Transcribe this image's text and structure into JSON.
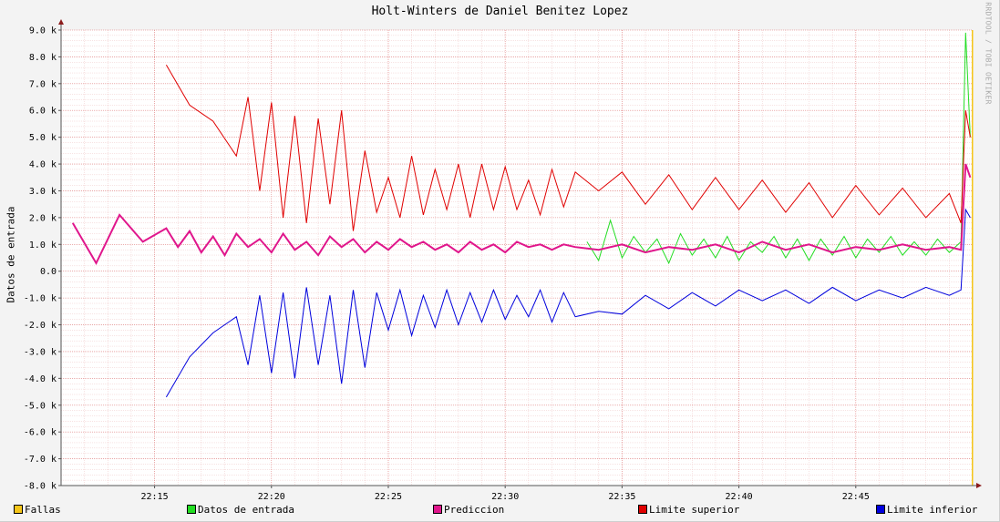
{
  "chart_data": {
    "type": "line",
    "title": "Holt-Winters de Daniel Benitez Lopez",
    "ylabel": "Datos de entrada",
    "watermark": "RRDTOOL / TOBI OETIKER",
    "ylim": [
      -8000,
      9000
    ],
    "yticks": [
      {
        "value": 9000,
        "label": "9.0 k"
      },
      {
        "value": 8000,
        "label": "8.0 k"
      },
      {
        "value": 7000,
        "label": "7.0 k"
      },
      {
        "value": 6000,
        "label": "6.0 k"
      },
      {
        "value": 5000,
        "label": "5.0 k"
      },
      {
        "value": 4000,
        "label": "4.0 k"
      },
      {
        "value": 3000,
        "label": "3.0 k"
      },
      {
        "value": 2000,
        "label": "2.0 k"
      },
      {
        "value": 1000,
        "label": "1.0 k"
      },
      {
        "value": 0,
        "label": "0.0"
      },
      {
        "value": -1000,
        "label": "-1.0 k"
      },
      {
        "value": -2000,
        "label": "-2.0 k"
      },
      {
        "value": -3000,
        "label": "-3.0 k"
      },
      {
        "value": -4000,
        "label": "-4.0 k"
      },
      {
        "value": -5000,
        "label": "-5.0 k"
      },
      {
        "value": -6000,
        "label": "-6.0 k"
      },
      {
        "value": -7000,
        "label": "-7.0 k"
      },
      {
        "value": -8000,
        "label": "-8.0 k"
      }
    ],
    "xlim": [
      "22:11",
      "22:50"
    ],
    "xticks": [
      "22:15",
      "22:20",
      "22:25",
      "22:30",
      "22:35",
      "22:40",
      "22:45"
    ],
    "grid": true,
    "legend": "bottom",
    "series": [
      {
        "name": "Fallas",
        "color": "#f5c518",
        "x": [
          "22:50"
        ],
        "values": [
          1
        ]
      },
      {
        "name": "Datos de entrada",
        "color": "#22dd22",
        "x": [
          "22:33.5",
          "22:34",
          "22:34.5",
          "22:35",
          "22:35.5",
          "22:36",
          "22:36.5",
          "22:37",
          "22:37.5",
          "22:38",
          "22:38.5",
          "22:39",
          "22:39.5",
          "22:40",
          "22:40.5",
          "22:41",
          "22:41.5",
          "22:42",
          "22:42.5",
          "22:43",
          "22:43.5",
          "22:44",
          "22:44.5",
          "22:45",
          "22:45.5",
          "22:46",
          "22:46.5",
          "22:47",
          "22:47.5",
          "22:48",
          "22:48.5",
          "22:49",
          "22:49.5",
          "22:49.7",
          "22:49.9"
        ],
        "values": [
          1100,
          400,
          1900,
          500,
          1300,
          700,
          1200,
          300,
          1400,
          600,
          1200,
          500,
          1300,
          400,
          1100,
          700,
          1300,
          500,
          1200,
          400,
          1200,
          600,
          1300,
          500,
          1200,
          700,
          1300,
          600,
          1100,
          600,
          1200,
          700,
          1100,
          8900,
          5000
        ]
      },
      {
        "name": "Prediccion",
        "color": "#e0168c",
        "x": [
          "22:11.5",
          "22:12.5",
          "22:13.5",
          "22:14.5",
          "22:15.5",
          "22:16",
          "22:16.5",
          "22:17",
          "22:17.5",
          "22:18",
          "22:18.5",
          "22:19",
          "22:19.5",
          "22:20",
          "22:20.5",
          "22:21",
          "22:21.5",
          "22:22",
          "22:22.5",
          "22:23",
          "22:23.5",
          "22:24",
          "22:24.5",
          "22:25",
          "22:25.5",
          "22:26",
          "22:26.5",
          "22:27",
          "22:27.5",
          "22:28",
          "22:28.5",
          "22:29",
          "22:29.5",
          "22:30",
          "22:30.5",
          "22:31",
          "22:31.5",
          "22:32",
          "22:32.5",
          "22:33",
          "22:34",
          "22:35",
          "22:36",
          "22:37",
          "22:38",
          "22:39",
          "22:40",
          "22:41",
          "22:42",
          "22:43",
          "22:44",
          "22:45",
          "22:46",
          "22:47",
          "22:48",
          "22:49",
          "22:49.5",
          "22:49.7",
          "22:49.9"
        ],
        "values": [
          1800,
          300,
          2100,
          1100,
          1600,
          900,
          1500,
          700,
          1300,
          600,
          1400,
          900,
          1200,
          700,
          1400,
          800,
          1100,
          600,
          1300,
          900,
          1200,
          700,
          1100,
          800,
          1200,
          900,
          1100,
          800,
          1000,
          700,
          1100,
          800,
          1000,
          700,
          1100,
          900,
          1000,
          800,
          1000,
          900,
          800,
          1000,
          700,
          900,
          800,
          1000,
          700,
          1100,
          800,
          1000,
          700,
          900,
          800,
          1000,
          800,
          900,
          800,
          4000,
          3500
        ]
      },
      {
        "name": "Limite superior",
        "color": "#e00000",
        "x": [
          "22:15.5",
          "22:16.5",
          "22:17.5",
          "22:18.5",
          "22:19",
          "22:19.5",
          "22:20",
          "22:20.5",
          "22:21",
          "22:21.5",
          "22:22",
          "22:22.5",
          "22:23",
          "22:23.5",
          "22:24",
          "22:24.5",
          "22:25",
          "22:25.5",
          "22:26",
          "22:26.5",
          "22:27",
          "22:27.5",
          "22:28",
          "22:28.5",
          "22:29",
          "22:29.5",
          "22:30",
          "22:30.5",
          "22:31",
          "22:31.5",
          "22:32",
          "22:32.5",
          "22:33",
          "22:34",
          "22:35",
          "22:36",
          "22:37",
          "22:38",
          "22:39",
          "22:40",
          "22:41",
          "22:42",
          "22:43",
          "22:44",
          "22:45",
          "22:46",
          "22:47",
          "22:48",
          "22:49",
          "22:49.5",
          "22:49.7",
          "22:49.9"
        ],
        "values": [
          7700,
          6200,
          5600,
          4300,
          6500,
          3000,
          6300,
          2000,
          5800,
          1800,
          5700,
          2500,
          6000,
          1500,
          4500,
          2200,
          3500,
          2000,
          4300,
          2100,
          3800,
          2300,
          4000,
          2000,
          4000,
          2300,
          3900,
          2300,
          3400,
          2100,
          3800,
          2400,
          3700,
          3000,
          3700,
          2500,
          3600,
          2300,
          3500,
          2300,
          3400,
          2200,
          3300,
          2000,
          3200,
          2100,
          3100,
          2000,
          2900,
          1800,
          6000,
          5000
        ]
      },
      {
        "name": "Limite inferior",
        "color": "#0000dd",
        "x": [
          "22:15.5",
          "22:16.5",
          "22:17.5",
          "22:18.5",
          "22:19",
          "22:19.5",
          "22:20",
          "22:20.5",
          "22:21",
          "22:21.5",
          "22:22",
          "22:22.5",
          "22:23",
          "22:23.5",
          "22:24",
          "22:24.5",
          "22:25",
          "22:25.5",
          "22:26",
          "22:26.5",
          "22:27",
          "22:27.5",
          "22:28",
          "22:28.5",
          "22:29",
          "22:29.5",
          "22:30",
          "22:30.5",
          "22:31",
          "22:31.5",
          "22:32",
          "22:32.5",
          "22:33",
          "22:34",
          "22:35",
          "22:36",
          "22:37",
          "22:38",
          "22:39",
          "22:40",
          "22:41",
          "22:42",
          "22:43",
          "22:44",
          "22:45",
          "22:46",
          "22:47",
          "22:48",
          "22:49",
          "22:49.5",
          "22:49.7",
          "22:49.9"
        ],
        "values": [
          -4700,
          -3200,
          -2300,
          -1700,
          -3500,
          -900,
          -3800,
          -800,
          -4000,
          -600,
          -3500,
          -900,
          -4200,
          -700,
          -3600,
          -800,
          -2200,
          -700,
          -2400,
          -900,
          -2100,
          -700,
          -2000,
          -800,
          -1900,
          -700,
          -1800,
          -900,
          -1700,
          -700,
          -1900,
          -800,
          -1700,
          -1500,
          -1600,
          -900,
          -1400,
          -800,
          -1300,
          -700,
          -1100,
          -700,
          -1200,
          -600,
          -1100,
          -700,
          -1000,
          -600,
          -900,
          -700,
          2300,
          2000
        ]
      }
    ]
  }
}
